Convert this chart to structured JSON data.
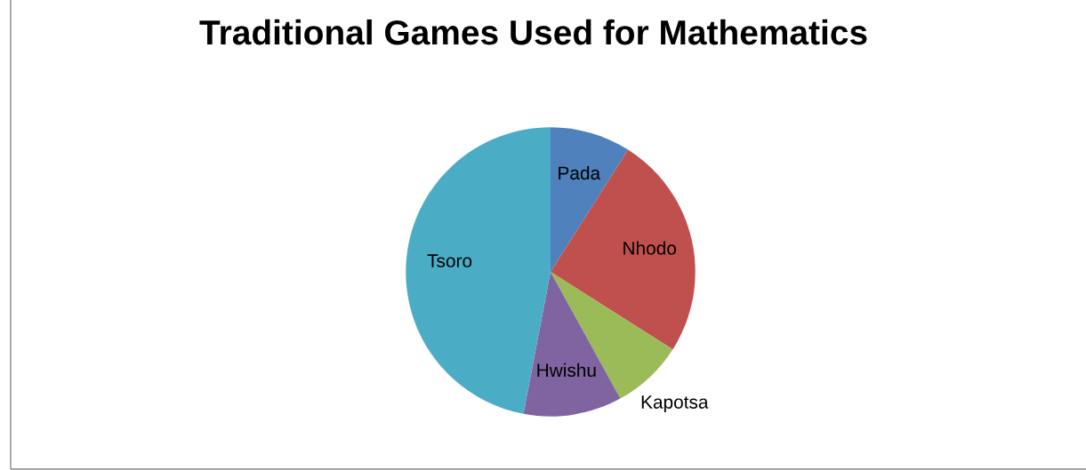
{
  "chart_data": {
    "type": "pie",
    "title": "Traditional Games Used for Mathematics",
    "categories": [
      "Pada",
      "Nhodo",
      "Kapotsa",
      "Hwishu",
      "Tsoro"
    ],
    "values": [
      9,
      25,
      8,
      11,
      47
    ],
    "colors": [
      "#4f81bd",
      "#c0504d",
      "#9bbb59",
      "#8064a2",
      "#4bacc6"
    ],
    "legend": false
  }
}
